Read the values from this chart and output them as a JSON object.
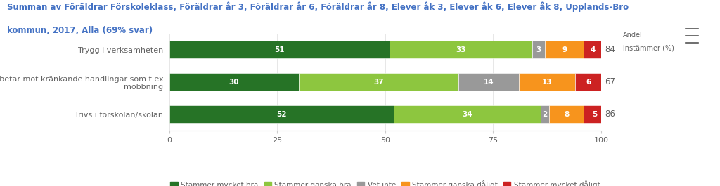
{
  "title_line1": "Summan av Föräldrar Förskoleklass, Föräldrar år 3, Föräldrar år 6, Föräldrar år 8, Elever åk 3, Elever åk 6, Elever åk 8, Upplands-Bro",
  "title_line2": "kommun, 2017, Alla (69% svar)",
  "categories": [
    "Trygg i verksamheten",
    "Arbetar mot kränkande handlingar som t ex\nmobbning",
    "Trivs i förskolan/skolan"
  ],
  "andel": [
    84,
    67,
    86
  ],
  "segments": [
    [
      51,
      33,
      3,
      9,
      4
    ],
    [
      30,
      37,
      14,
      13,
      6
    ],
    [
      52,
      34,
      2,
      8,
      5
    ]
  ],
  "colors": [
    "#267326",
    "#8dc63f",
    "#999999",
    "#f7941d",
    "#cc2222"
  ],
  "legend_labels": [
    "Stämmer mycket bra",
    "Stämmer ganska bra",
    "Vet inte",
    "Stämmer ganska dåligt",
    "Stämmer mycket dåligt"
  ],
  "legend_colors": [
    "#267326",
    "#8dc63f",
    "#999999",
    "#f7941d",
    "#cc2222"
  ],
  "xlabel_ticks": [
    0,
    25,
    50,
    75,
    100
  ],
  "andel_label": "Andel\ninstämmer (%)",
  "bar_height": 0.55,
  "background_color": "#ffffff",
  "title_color": "#4472c4",
  "text_color": "#ffffff",
  "label_color": "#606060",
  "tick_color": "#606060"
}
